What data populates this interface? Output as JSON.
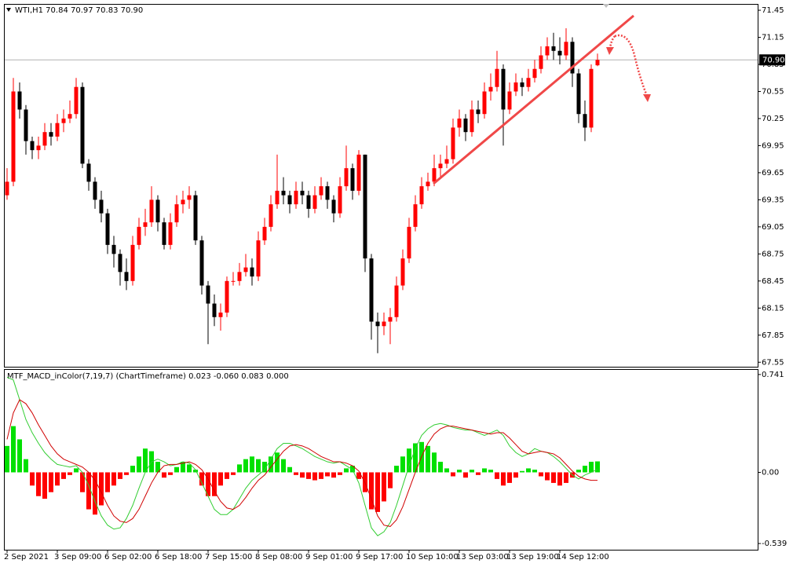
{
  "chart_data": [
    {
      "type": "candlestick",
      "title": "WTI,H1  70.84 70.97 70.83 70.90",
      "categories": [
        "2 Sep 2021",
        null,
        null,
        null,
        null,
        null,
        null,
        null,
        "3 Sep 09:00",
        null,
        null,
        null,
        null,
        null,
        null,
        null,
        "6 Sep 02:00",
        null,
        null,
        null,
        null,
        null,
        null,
        null,
        "6 Sep 18:00",
        null,
        null,
        null,
        null,
        null,
        null,
        null,
        "7 Sep 15:00",
        null,
        null,
        null,
        null,
        null,
        null,
        null,
        "8 Sep 08:00",
        null,
        null,
        null,
        null,
        null,
        null,
        null,
        "9 Sep 01:00",
        null,
        null,
        null,
        null,
        null,
        null,
        null,
        "9 Sep 17:00",
        null,
        null,
        null,
        null,
        null,
        null,
        null,
        "10 Sep 10:00",
        null,
        null,
        null,
        null,
        null,
        null,
        null,
        "13 Sep 03:00",
        null,
        null,
        null,
        null,
        null,
        null,
        null,
        "13 Sep 19:00",
        null,
        null,
        null,
        null,
        null,
        null,
        null,
        "14 Sep 12:00",
        null,
        null,
        null,
        null,
        null,
        null
      ],
      "open": [
        69.4,
        69.55,
        70.55,
        70.35,
        70.0,
        69.9,
        69.95,
        70.1,
        70.05,
        70.2,
        70.25,
        70.3,
        70.6,
        69.75,
        69.55,
        69.35,
        69.2,
        68.85,
        68.75,
        68.55,
        68.45,
        68.85,
        69.05,
        69.1,
        69.35,
        69.1,
        68.85,
        69.1,
        69.3,
        69.35,
        69.4,
        68.9,
        68.4,
        68.2,
        68.05,
        68.1,
        68.45,
        68.45,
        68.55,
        68.6,
        68.5,
        68.9,
        69.05,
        69.3,
        69.45,
        69.4,
        69.3,
        69.45,
        69.4,
        69.25,
        69.4,
        69.5,
        69.35,
        69.2,
        69.5,
        69.7,
        69.45,
        69.85,
        68.7,
        68.0,
        67.95,
        68.0,
        68.05,
        68.4,
        68.7,
        69.05,
        69.3,
        69.5,
        69.55,
        69.7,
        69.75,
        69.8,
        70.15,
        70.25,
        70.1,
        70.35,
        70.3,
        70.55,
        70.6,
        70.8,
        70.35,
        70.55,
        70.65,
        70.6,
        70.7,
        70.8,
        70.95,
        71.05,
        71.0,
        70.95,
        71.1,
        70.75,
        70.3,
        70.15,
        70.84
      ],
      "high": [
        69.7,
        70.7,
        70.65,
        70.4,
        70.05,
        70.05,
        70.2,
        70.2,
        70.3,
        70.35,
        70.45,
        70.7,
        70.65,
        69.8,
        69.6,
        69.45,
        69.25,
        68.95,
        68.8,
        68.7,
        68.95,
        69.15,
        69.25,
        69.5,
        69.4,
        69.15,
        69.2,
        69.4,
        69.45,
        69.5,
        69.45,
        68.95,
        68.45,
        68.3,
        68.2,
        68.5,
        68.55,
        68.65,
        68.75,
        68.7,
        69.0,
        69.15,
        69.4,
        69.85,
        69.6,
        69.45,
        69.55,
        69.55,
        69.45,
        69.5,
        69.6,
        69.55,
        69.4,
        69.6,
        69.95,
        69.75,
        69.9,
        69.85,
        68.75,
        68.1,
        68.1,
        68.15,
        68.5,
        68.8,
        69.15,
        69.4,
        69.6,
        69.65,
        69.85,
        69.85,
        69.95,
        70.25,
        70.35,
        70.3,
        70.45,
        70.45,
        70.65,
        70.75,
        71.0,
        70.85,
        70.65,
        70.75,
        70.7,
        70.8,
        70.9,
        71.05,
        71.15,
        71.2,
        71.15,
        71.25,
        71.15,
        70.8,
        70.45,
        70.85,
        70.97
      ],
      "low": [
        69.35,
        69.5,
        70.25,
        69.85,
        69.8,
        69.8,
        69.9,
        69.95,
        70.0,
        70.1,
        70.2,
        70.25,
        69.7,
        69.45,
        69.25,
        69.1,
        68.75,
        68.6,
        68.4,
        68.35,
        68.4,
        68.8,
        68.95,
        69.05,
        69.0,
        68.8,
        68.8,
        69.05,
        69.2,
        69.25,
        68.85,
        68.3,
        67.75,
        67.95,
        67.9,
        68.05,
        68.4,
        68.4,
        68.5,
        68.4,
        68.45,
        68.85,
        69.0,
        69.25,
        69.3,
        69.2,
        69.25,
        69.3,
        69.15,
        69.2,
        69.35,
        69.25,
        69.1,
        69.15,
        69.45,
        69.35,
        69.4,
        68.55,
        67.8,
        67.65,
        67.85,
        67.75,
        68.0,
        68.35,
        68.65,
        69.0,
        69.25,
        69.45,
        69.5,
        69.6,
        69.7,
        69.75,
        70.05,
        70.0,
        70.05,
        70.2,
        70.25,
        70.45,
        70.55,
        69.95,
        70.3,
        70.5,
        70.5,
        70.55,
        70.65,
        70.75,
        70.9,
        70.9,
        70.85,
        70.9,
        70.6,
        70.2,
        70.0,
        70.1,
        70.83
      ],
      "close": [
        69.55,
        70.55,
        70.35,
        70.0,
        69.9,
        69.95,
        70.1,
        70.05,
        70.2,
        70.25,
        70.3,
        70.6,
        69.75,
        69.55,
        69.35,
        69.2,
        68.85,
        68.75,
        68.55,
        68.45,
        68.85,
        69.05,
        69.1,
        69.35,
        69.1,
        68.85,
        69.1,
        69.3,
        69.35,
        69.4,
        68.9,
        68.4,
        68.2,
        68.05,
        68.1,
        68.45,
        68.45,
        68.55,
        68.6,
        68.5,
        68.9,
        69.05,
        69.3,
        69.45,
        69.4,
        69.3,
        69.45,
        69.4,
        69.25,
        69.4,
        69.5,
        69.35,
        69.2,
        69.5,
        69.7,
        69.45,
        69.85,
        68.7,
        68.0,
        67.95,
        68.0,
        68.05,
        68.4,
        68.7,
        69.05,
        69.3,
        69.5,
        69.55,
        69.7,
        69.75,
        69.8,
        70.15,
        70.25,
        70.1,
        70.35,
        70.3,
        70.55,
        70.6,
        70.8,
        70.35,
        70.55,
        70.65,
        70.6,
        70.7,
        70.8,
        70.95,
        71.05,
        71.0,
        70.95,
        71.1,
        70.75,
        70.3,
        70.15,
        70.8,
        70.9
      ],
      "up_color": "#ff0000",
      "down_color": "#000000",
      "ylim": [
        67.5,
        71.52
      ],
      "yticks": [
        71.45,
        71.15,
        70.85,
        70.55,
        70.25,
        69.95,
        69.65,
        69.35,
        69.05,
        68.75,
        68.45,
        68.15,
        67.85,
        67.55
      ],
      "last_price": {
        "value": 70.9,
        "label": "70.90"
      }
    },
    {
      "type": "macd",
      "title": "MTF_MACD_inColor(7,19,7) (ChartTimeframe) 0.023 -0.060 0.083 0.000",
      "histogram": [
        0.2,
        0.35,
        0.25,
        0.1,
        -0.1,
        -0.18,
        -0.2,
        -0.15,
        -0.1,
        -0.05,
        -0.02,
        0.03,
        -0.15,
        -0.28,
        -0.32,
        -0.25,
        -0.15,
        -0.1,
        -0.05,
        -0.02,
        0.05,
        0.12,
        0.18,
        0.16,
        0.08,
        -0.04,
        -0.02,
        0.04,
        0.08,
        0.06,
        0.02,
        -0.1,
        -0.18,
        -0.18,
        -0.1,
        -0.05,
        -0.02,
        0.06,
        0.1,
        0.12,
        0.1,
        0.08,
        0.12,
        0.15,
        0.1,
        0.04,
        -0.02,
        -0.04,
        -0.05,
        -0.06,
        -0.05,
        -0.03,
        -0.04,
        -0.02,
        0.03,
        0.05,
        -0.05,
        -0.15,
        -0.28,
        -0.3,
        -0.22,
        -0.12,
        0.05,
        0.12,
        0.18,
        0.22,
        0.23,
        0.2,
        0.15,
        0.08,
        0.03,
        -0.03,
        0.02,
        -0.04,
        0.02,
        -0.02,
        0.03,
        0.02,
        -0.05,
        -0.1,
        -0.08,
        -0.04,
        0.01,
        0.03,
        0.02,
        -0.03,
        -0.06,
        -0.08,
        -0.1,
        -0.08,
        -0.04,
        0.02,
        0.05,
        0.08,
        0.083
      ],
      "main": [
        0.72,
        0.7,
        0.55,
        0.4,
        0.3,
        0.22,
        0.15,
        0.1,
        0.06,
        0.05,
        0.04,
        0.05,
        0.0,
        -0.1,
        -0.22,
        -0.33,
        -0.4,
        -0.43,
        -0.42,
        -0.35,
        -0.25,
        -0.12,
        0.0,
        0.08,
        0.1,
        0.08,
        0.05,
        0.06,
        0.08,
        0.07,
        0.02,
        -0.08,
        -0.18,
        -0.28,
        -0.32,
        -0.32,
        -0.28,
        -0.2,
        -0.12,
        -0.06,
        -0.02,
        0.02,
        0.1,
        0.18,
        0.22,
        0.22,
        0.2,
        0.18,
        0.15,
        0.12,
        0.1,
        0.08,
        0.07,
        0.08,
        0.05,
        0.02,
        -0.08,
        -0.25,
        -0.42,
        -0.48,
        -0.45,
        -0.38,
        -0.25,
        -0.1,
        0.05,
        0.18,
        0.28,
        0.33,
        0.36,
        0.37,
        0.36,
        0.34,
        0.33,
        0.32,
        0.32,
        0.3,
        0.28,
        0.3,
        0.32,
        0.28,
        0.2,
        0.15,
        0.12,
        0.14,
        0.18,
        0.16,
        0.15,
        0.12,
        0.08,
        0.03,
        -0.02,
        -0.05,
        -0.02,
        0.0,
        0.023
      ],
      "signal": [
        0.25,
        0.45,
        0.55,
        0.52,
        0.45,
        0.36,
        0.28,
        0.2,
        0.14,
        0.1,
        0.08,
        0.06,
        0.04,
        0.0,
        -0.06,
        -0.15,
        -0.25,
        -0.33,
        -0.37,
        -0.38,
        -0.35,
        -0.28,
        -0.18,
        -0.08,
        0.0,
        0.05,
        0.06,
        0.06,
        0.07,
        0.08,
        0.06,
        0.02,
        -0.05,
        -0.14,
        -0.22,
        -0.27,
        -0.28,
        -0.25,
        -0.19,
        -0.12,
        -0.06,
        -0.02,
        0.04,
        0.1,
        0.16,
        0.2,
        0.21,
        0.2,
        0.18,
        0.15,
        0.12,
        0.1,
        0.08,
        0.08,
        0.07,
        0.05,
        0.01,
        -0.08,
        -0.2,
        -0.33,
        -0.4,
        -0.41,
        -0.36,
        -0.26,
        -0.13,
        0.0,
        0.12,
        0.22,
        0.29,
        0.33,
        0.35,
        0.35,
        0.34,
        0.33,
        0.32,
        0.31,
        0.3,
        0.29,
        0.3,
        0.3,
        0.26,
        0.21,
        0.16,
        0.14,
        0.15,
        0.16,
        0.15,
        0.14,
        0.11,
        0.06,
        0.01,
        -0.03,
        -0.05,
        -0.06,
        -0.06
      ],
      "positive_color": "#00e000",
      "negative_color": "#ff0000",
      "main_color": "#32cd32",
      "signal_color": "#d00000",
      "ylim": [
        -0.586,
        0.782
      ],
      "yticks": [
        0.741,
        {
          "value": 0,
          "label": "0.00"
        },
        -0.539
      ]
    }
  ]
}
